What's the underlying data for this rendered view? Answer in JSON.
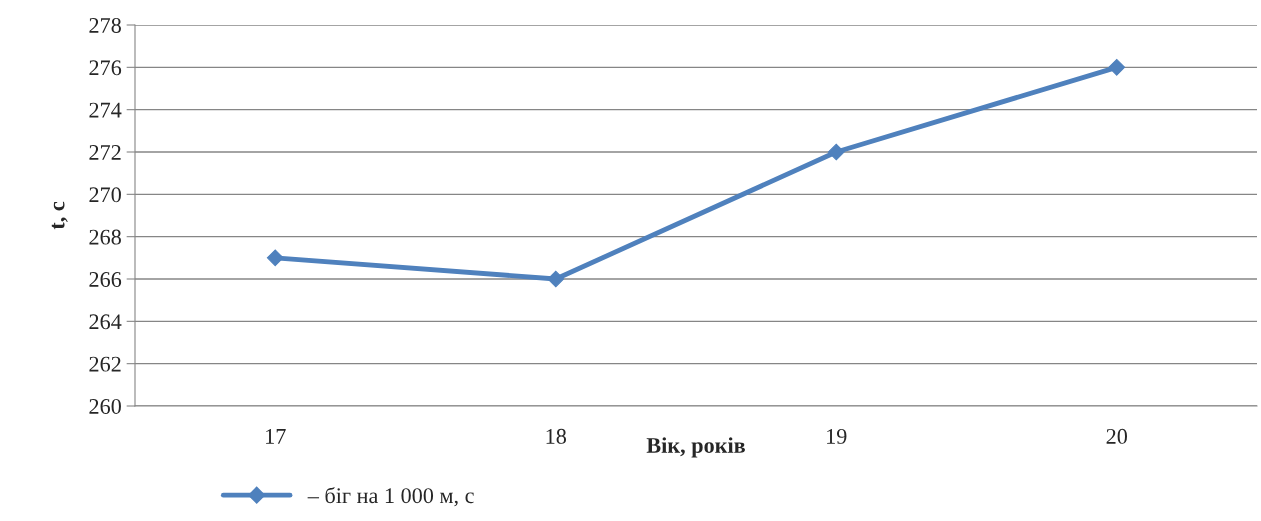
{
  "chart_data": {
    "type": "line",
    "xlabel": "Вік, років",
    "ylabel": "t, с",
    "categories": [
      "17",
      "18",
      "19",
      "20"
    ],
    "series": [
      {
        "name": "– біг на 1 000 м, с",
        "color": "#4f81bd",
        "values": [
          267,
          266,
          272,
          276
        ]
      }
    ],
    "ylim": [
      260,
      278
    ],
    "yticks": [
      260,
      262,
      264,
      266,
      268,
      270,
      272,
      274,
      276,
      278
    ],
    "grid": "y",
    "legend": "bottom",
    "marker": "diamond",
    "line_style": "solid"
  }
}
